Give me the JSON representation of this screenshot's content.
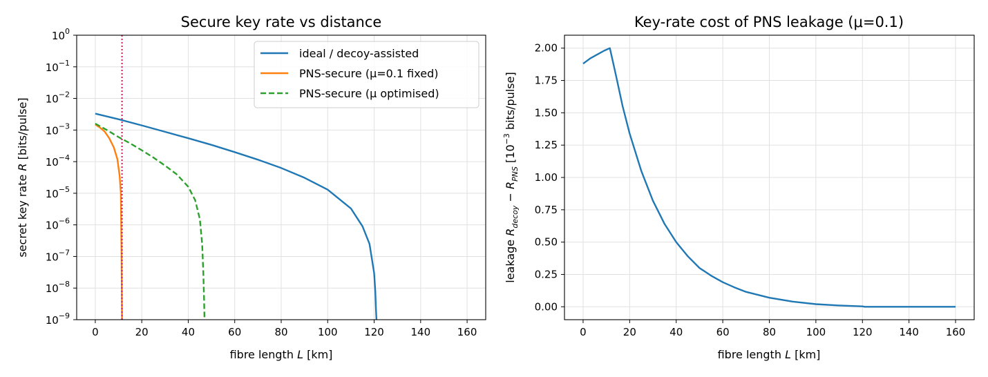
{
  "chart_data": [
    {
      "type": "line",
      "title": "Secure key rate vs distance",
      "xlabel": "fibre length L [km]",
      "ylabel": "secret key rate R [bits/pulse]",
      "xlim": [
        -8,
        168
      ],
      "ylim": [
        1e-09,
        1
      ],
      "yscale": "log",
      "grid": true,
      "legend": "top-right",
      "xticks": [
        0,
        20,
        40,
        60,
        80,
        100,
        120,
        140,
        160
      ],
      "yticks_exponents": [
        0,
        -1,
        -2,
        -3,
        -4,
        -5,
        -6,
        -7,
        -8,
        -9
      ],
      "vline": {
        "x": 11.5,
        "color": "#c2185b",
        "style": "dotted"
      },
      "series": [
        {
          "name": "ideal / decoy-assisted",
          "color": "#1f77b4",
          "style": "solid",
          "x": [
            0,
            10,
            20,
            30,
            40,
            50,
            60,
            70,
            80,
            90,
            100,
            110,
            115,
            118,
            120,
            120.5,
            120.8,
            121
          ],
          "y": [
            0.0033,
            0.0022,
            0.0014,
            0.00088,
            0.00055,
            0.00034,
            0.0002,
            0.000115,
            6.3e-05,
            3.1e-05,
            1.3e-05,
            3.3e-06,
            9e-07,
            2.5e-07,
            3e-08,
            8e-09,
            2e-09,
            1e-09
          ]
        },
        {
          "name": "PNS-secure (μ=0.1 fixed)",
          "color": "#ff7f0e",
          "style": "solid",
          "x": [
            0,
            2,
            4,
            6,
            8,
            9.5,
            10.5,
            11,
            11.3,
            11.5
          ],
          "y": [
            0.0015,
            0.0012,
            0.0009,
            0.00055,
            0.00028,
            0.00012,
            3.5e-05,
            1e-05,
            1e-07,
            1e-09
          ]
        },
        {
          "name": "PNS-secure (μ optimised)",
          "color": "#2ca02c",
          "style": "dashed",
          "x": [
            0,
            5,
            10,
            15,
            20,
            25,
            30,
            35,
            40,
            43,
            45,
            46,
            46.5,
            46.8,
            47
          ],
          "y": [
            0.0016,
            0.001,
            0.0006,
            0.00038,
            0.00023,
            0.000135,
            7.5e-05,
            4e-05,
            1.6e-05,
            6e-06,
            1.5e-06,
            2.5e-07,
            3e-08,
            5e-09,
            1e-09
          ]
        }
      ]
    },
    {
      "type": "line",
      "title": "Key-rate cost of PNS leakage (μ=0.1)",
      "xlabel": "fibre length L [km]",
      "ylabel": "leakage R_decoy − R_PNS [10^−3 bits/pulse]",
      "xlim": [
        -8,
        168
      ],
      "ylim": [
        -0.1,
        2.1
      ],
      "grid": true,
      "xticks": [
        0,
        20,
        40,
        60,
        80,
        100,
        120,
        140,
        160
      ],
      "yticks": [
        0.0,
        0.25,
        0.5,
        0.75,
        1.0,
        1.25,
        1.5,
        1.75,
        2.0
      ],
      "series": [
        {
          "name": "",
          "color": "#1f77b4",
          "style": "solid",
          "x": [
            0,
            3,
            6,
            9,
            11.5,
            14,
            17,
            20,
            25,
            30,
            35,
            40,
            45,
            50,
            55,
            60,
            65,
            70,
            80,
            90,
            100,
            110,
            120,
            121,
            130,
            140,
            150,
            160
          ],
          "y": [
            1.88,
            1.92,
            1.95,
            1.98,
            2.0,
            1.8,
            1.55,
            1.34,
            1.05,
            0.82,
            0.64,
            0.5,
            0.39,
            0.3,
            0.24,
            0.19,
            0.15,
            0.115,
            0.07,
            0.04,
            0.02,
            0.01,
            0.003,
            0.0,
            0.0,
            0.0,
            0.0,
            0.0
          ]
        }
      ]
    }
  ]
}
